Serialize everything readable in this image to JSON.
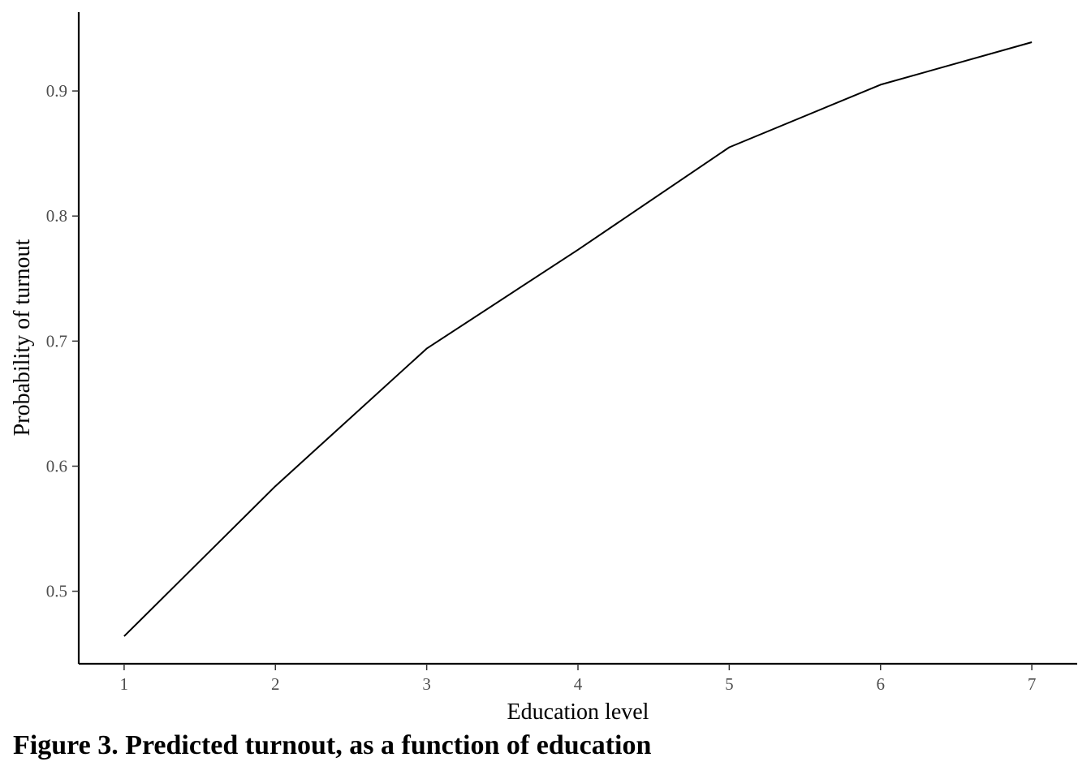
{
  "caption": "Figure 3. Predicted turnout, as a function of education",
  "chart_data": {
    "type": "line",
    "title": "",
    "xlabel": "Education level",
    "ylabel": "Probability of turnout",
    "x": [
      1,
      2,
      3,
      4,
      5,
      6,
      7
    ],
    "series": [
      {
        "values": [
          0.464,
          0.584,
          0.694,
          0.773,
          0.855,
          0.905,
          0.939
        ]
      }
    ],
    "x_ticks": [
      1,
      2,
      3,
      4,
      5,
      6,
      7
    ],
    "x_tick_labels": [
      "1",
      "2",
      "3",
      "4",
      "5",
      "6",
      "7"
    ],
    "y_ticks": [
      0.5,
      0.6,
      0.7,
      0.8,
      0.9
    ],
    "y_tick_labels": [
      "0.5",
      "0.6",
      "0.7",
      "0.8",
      "0.9"
    ],
    "xlim": [
      0.7,
      7.3
    ],
    "ylim": [
      0.442,
      0.963
    ],
    "grid": false,
    "line_color": "#000000"
  }
}
